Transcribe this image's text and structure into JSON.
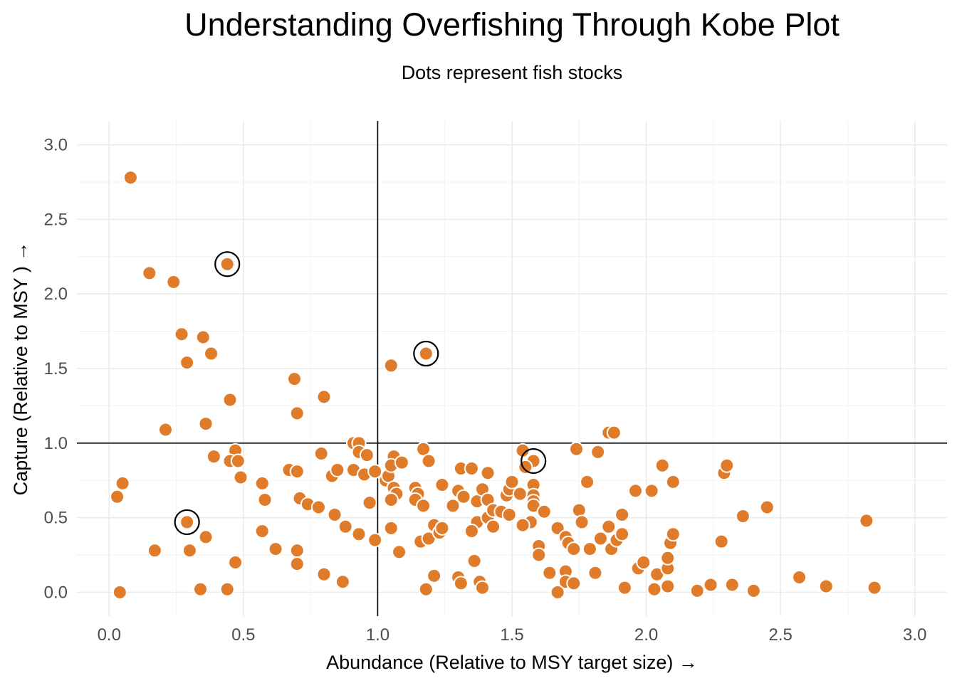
{
  "chart_data": {
    "type": "scatter",
    "title": "Understanding Overfishing Through Kobe Plot",
    "subtitle": "Dots represent fish stocks",
    "xlabel": "Abundance (Relative to MSY target size) →",
    "ylabel": "Capture (Relative to MSY ) →",
    "xlim": [
      -0.12,
      3.12
    ],
    "ylim": [
      -0.16,
      3.16
    ],
    "x_ticks": [
      0.0,
      0.5,
      1.0,
      1.5,
      2.0,
      2.5,
      3.0
    ],
    "x_tick_labels": [
      "0.0",
      "0.5",
      "1.0",
      "1.5",
      "2.0",
      "2.5",
      "3.0"
    ],
    "y_ticks": [
      0.0,
      0.5,
      1.0,
      1.5,
      2.0,
      2.5,
      3.0
    ],
    "y_tick_labels": [
      "0.0",
      "0.5",
      "1.0",
      "1.5",
      "2.0",
      "2.5",
      "3.0"
    ],
    "reference_lines": {
      "x": 1.0,
      "y": 1.0
    },
    "grid": true,
    "point_color": "#e07b2a",
    "points": [
      [
        0.08,
        2.78
      ],
      [
        0.44,
        2.2
      ],
      [
        0.15,
        2.14
      ],
      [
        0.24,
        2.08
      ],
      [
        0.27,
        1.73
      ],
      [
        0.35,
        1.71
      ],
      [
        0.38,
        1.6
      ],
      [
        0.29,
        1.54
      ],
      [
        0.45,
        1.29
      ],
      [
        0.36,
        1.13
      ],
      [
        0.21,
        1.09
      ],
      [
        0.39,
        0.91
      ],
      [
        0.47,
        0.95
      ],
      [
        0.45,
        0.88
      ],
      [
        0.48,
        0.88
      ],
      [
        0.49,
        0.77
      ],
      [
        0.69,
        1.43
      ],
      [
        0.8,
        1.31
      ],
      [
        0.7,
        1.2
      ],
      [
        0.57,
        0.73
      ],
      [
        0.58,
        0.62
      ],
      [
        0.67,
        0.82
      ],
      [
        0.7,
        0.81
      ],
      [
        0.71,
        0.63
      ],
      [
        0.74,
        0.59
      ],
      [
        0.78,
        0.57
      ],
      [
        0.79,
        0.93
      ],
      [
        0.83,
        0.78
      ],
      [
        0.85,
        0.82
      ],
      [
        0.84,
        0.52
      ],
      [
        0.88,
        0.44
      ],
      [
        0.91,
        1.0
      ],
      [
        0.93,
        1.0
      ],
      [
        0.93,
        0.94
      ],
      [
        0.96,
        0.92
      ],
      [
        0.91,
        0.82
      ],
      [
        0.95,
        0.79
      ],
      [
        0.99,
        0.81
      ],
      [
        1.03,
        0.75
      ],
      [
        1.04,
        0.78
      ],
      [
        0.97,
        0.6
      ],
      [
        0.93,
        0.39
      ],
      [
        0.99,
        0.35
      ],
      [
        1.05,
        1.52
      ],
      [
        1.18,
        1.6
      ],
      [
        1.06,
        0.91
      ],
      [
        1.05,
        0.85
      ],
      [
        1.09,
        0.87
      ],
      [
        1.06,
        0.7
      ],
      [
        1.07,
        0.66
      ],
      [
        1.05,
        0.62
      ],
      [
        1.05,
        0.43
      ],
      [
        1.08,
        0.27
      ],
      [
        1.17,
        0.96
      ],
      [
        1.19,
        0.88
      ],
      [
        1.14,
        0.7
      ],
      [
        1.15,
        0.66
      ],
      [
        1.14,
        0.62
      ],
      [
        1.17,
        0.58
      ],
      [
        1.16,
        0.34
      ],
      [
        1.19,
        0.36
      ],
      [
        1.21,
        0.45
      ],
      [
        1.23,
        0.4
      ],
      [
        1.24,
        0.43
      ],
      [
        1.24,
        0.72
      ],
      [
        1.28,
        0.58
      ],
      [
        1.3,
        0.68
      ],
      [
        1.32,
        0.64
      ],
      [
        1.31,
        0.83
      ],
      [
        1.35,
        0.83
      ],
      [
        1.37,
        0.61
      ],
      [
        1.39,
        0.69
      ],
      [
        1.41,
        0.8
      ],
      [
        1.41,
        0.62
      ],
      [
        1.37,
        0.47
      ],
      [
        1.35,
        0.41
      ],
      [
        1.41,
        0.5
      ],
      [
        1.43,
        0.44
      ],
      [
        1.43,
        0.55
      ],
      [
        1.46,
        0.54
      ],
      [
        1.36,
        0.21
      ],
      [
        1.3,
        0.1
      ],
      [
        1.31,
        0.06
      ],
      [
        1.38,
        0.07
      ],
      [
        1.39,
        0.03
      ],
      [
        1.21,
        0.11
      ],
      [
        1.18,
        0.02
      ],
      [
        1.48,
        0.65
      ],
      [
        1.49,
        0.69
      ],
      [
        1.5,
        0.74
      ],
      [
        1.49,
        0.52
      ],
      [
        1.53,
        0.66
      ],
      [
        1.54,
        0.95
      ],
      [
        1.58,
        0.88
      ],
      [
        1.55,
        0.84
      ],
      [
        1.58,
        0.72
      ],
      [
        1.58,
        0.65
      ],
      [
        1.58,
        0.61
      ],
      [
        1.58,
        0.58
      ],
      [
        1.57,
        0.47
      ],
      [
        1.54,
        0.45
      ],
      [
        1.62,
        0.54
      ],
      [
        1.6,
        0.31
      ],
      [
        1.6,
        0.25
      ],
      [
        1.64,
        0.13
      ],
      [
        1.67,
        0.43
      ],
      [
        1.7,
        0.37
      ],
      [
        1.71,
        0.33
      ],
      [
        1.73,
        0.29
      ],
      [
        1.75,
        0.55
      ],
      [
        1.76,
        0.47
      ],
      [
        1.74,
        0.96
      ],
      [
        1.78,
        0.74
      ],
      [
        1.79,
        0.29
      ],
      [
        1.82,
        0.94
      ],
      [
        1.86,
        1.07
      ],
      [
        1.88,
        1.07
      ],
      [
        1.81,
        0.13
      ],
      [
        1.7,
        0.14
      ],
      [
        1.7,
        0.07
      ],
      [
        1.73,
        0.06
      ],
      [
        1.67,
        0.0
      ],
      [
        1.83,
        0.36
      ],
      [
        1.86,
        0.44
      ],
      [
        1.87,
        0.29
      ],
      [
        1.89,
        0.35
      ],
      [
        1.91,
        0.52
      ],
      [
        1.91,
        0.39
      ],
      [
        1.92,
        0.03
      ],
      [
        1.96,
        0.68
      ],
      [
        1.97,
        0.16
      ],
      [
        1.99,
        0.2
      ],
      [
        2.02,
        0.68
      ],
      [
        2.03,
        0.02
      ],
      [
        2.04,
        0.12
      ],
      [
        2.06,
        0.85
      ],
      [
        2.08,
        0.04
      ],
      [
        2.08,
        0.16
      ],
      [
        2.08,
        0.23
      ],
      [
        2.09,
        0.33
      ],
      [
        2.1,
        0.39
      ],
      [
        2.1,
        0.74
      ],
      [
        2.19,
        0.01
      ],
      [
        2.24,
        0.05
      ],
      [
        2.28,
        0.34
      ],
      [
        2.29,
        0.8
      ],
      [
        2.3,
        0.85
      ],
      [
        2.32,
        0.05
      ],
      [
        2.36,
        0.51
      ],
      [
        2.4,
        0.01
      ],
      [
        2.45,
        0.57
      ],
      [
        2.57,
        0.1
      ],
      [
        2.67,
        0.04
      ],
      [
        2.82,
        0.48
      ],
      [
        2.85,
        0.03
      ],
      [
        0.03,
        0.64
      ],
      [
        0.05,
        0.73
      ],
      [
        0.04,
        0.0
      ],
      [
        0.17,
        0.28
      ],
      [
        0.29,
        0.47
      ],
      [
        0.3,
        0.28
      ],
      [
        0.34,
        0.02
      ],
      [
        0.36,
        0.37
      ],
      [
        0.44,
        0.02
      ],
      [
        0.47,
        0.2
      ],
      [
        0.57,
        0.41
      ],
      [
        0.62,
        0.29
      ],
      [
        0.7,
        0.28
      ],
      [
        0.7,
        0.19
      ],
      [
        0.8,
        0.12
      ],
      [
        0.87,
        0.07
      ]
    ],
    "highlighted_points": [
      [
        0.44,
        2.2
      ],
      [
        1.18,
        1.6
      ],
      [
        1.58,
        0.88
      ],
      [
        0.29,
        0.47
      ]
    ]
  }
}
